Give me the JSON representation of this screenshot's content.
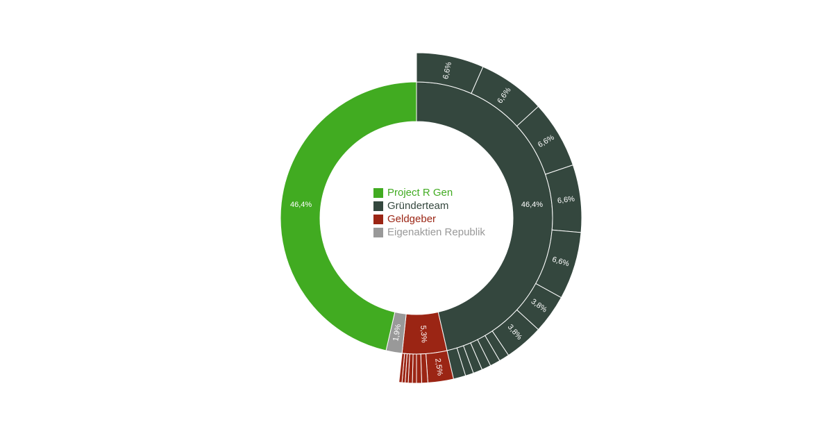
{
  "chart_data": {
    "type": "pie",
    "variant": "sunburst-donut",
    "colors": {
      "project_r_gen": "#41ab21",
      "gruenderteam": "#34473e",
      "geldgeber": "#9b2514",
      "eigenaktien": "#999999"
    },
    "legend": [
      {
        "key": "project_r_gen",
        "label": "Project R Gen",
        "color": "#41ab21"
      },
      {
        "key": "gruenderteam",
        "label": "Gründerteam",
        "color": "#34473e"
      },
      {
        "key": "geldgeber",
        "label": "Geldgeber",
        "color": "#9b2514"
      },
      {
        "key": "eigenaktien",
        "label": "Eigenaktien Republik",
        "color": "#999999"
      }
    ],
    "inner_ring": [
      {
        "key": "gruenderteam",
        "value": 46.4,
        "label": "46,4%"
      },
      {
        "key": "geldgeber",
        "value": 5.3,
        "label": "5,3%"
      },
      {
        "key": "eigenaktien",
        "value": 1.9,
        "label": "1,9%"
      },
      {
        "key": "project_r_gen",
        "value": 46.4,
        "label": "46,4%"
      }
    ],
    "outer_ring": [
      {
        "key": "gruenderteam",
        "value": 6.6,
        "label": "6,6%"
      },
      {
        "key": "gruenderteam",
        "value": 6.6,
        "label": "6,6%"
      },
      {
        "key": "gruenderteam",
        "value": 6.6,
        "label": "6,6%"
      },
      {
        "key": "gruenderteam",
        "value": 6.6,
        "label": "6,6%"
      },
      {
        "key": "gruenderteam",
        "value": 6.6,
        "label": "6,6%"
      },
      {
        "key": "gruenderteam",
        "value": 3.8,
        "label": "3,8%"
      },
      {
        "key": "gruenderteam",
        "value": 3.8,
        "label": "3,8%"
      },
      {
        "key": "gruenderteam",
        "value": 1.0,
        "label": ""
      },
      {
        "key": "gruenderteam",
        "value": 1.0,
        "label": ""
      },
      {
        "key": "gruenderteam",
        "value": 0.9,
        "label": ""
      },
      {
        "key": "gruenderteam",
        "value": 0.9,
        "label": ""
      },
      {
        "key": "gruenderteam",
        "value": 0.8,
        "label": ""
      },
      {
        "key": "gruenderteam",
        "value": 1.2,
        "label": ""
      },
      {
        "key": "geldgeber",
        "value": 2.5,
        "label": "2,5%"
      },
      {
        "key": "geldgeber",
        "value": 0.6,
        "label": ""
      },
      {
        "key": "geldgeber",
        "value": 0.5,
        "label": ""
      },
      {
        "key": "geldgeber",
        "value": 0.4,
        "label": ""
      },
      {
        "key": "geldgeber",
        "value": 0.4,
        "label": ""
      },
      {
        "key": "geldgeber",
        "value": 0.3,
        "label": ""
      },
      {
        "key": "geldgeber",
        "value": 0.3,
        "label": ""
      },
      {
        "key": "geldgeber",
        "value": 0.3,
        "label": ""
      }
    ]
  }
}
